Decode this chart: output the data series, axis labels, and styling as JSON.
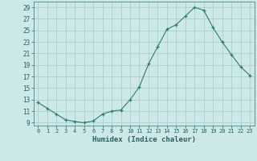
{
  "x": [
    0,
    1,
    2,
    3,
    4,
    5,
    6,
    7,
    8,
    9,
    10,
    11,
    12,
    13,
    14,
    15,
    16,
    17,
    18,
    19,
    20,
    21,
    22,
    23
  ],
  "y": [
    12.5,
    11.5,
    10.5,
    9.5,
    9.2,
    9.0,
    9.3,
    10.5,
    11.0,
    11.2,
    13.0,
    15.2,
    19.2,
    22.2,
    25.2,
    26.0,
    27.5,
    29.0,
    28.5,
    25.5,
    23.0,
    20.8,
    18.7,
    17.2
  ],
  "line_color": "#2e7d6e",
  "marker": "+",
  "bg_color": "#cce8e8",
  "grid_color": "#aacfcf",
  "xlabel": "Humidex (Indice chaleur)",
  "xlim": [
    -0.5,
    23.5
  ],
  "ylim": [
    8.5,
    30.0
  ],
  "yticks": [
    9,
    11,
    13,
    15,
    17,
    19,
    21,
    23,
    25,
    27,
    29
  ],
  "xtick_labels": [
    "0",
    "1",
    "2",
    "3",
    "4",
    "5",
    "6",
    "7",
    "8",
    "9",
    "10",
    "11",
    "12",
    "13",
    "14",
    "15",
    "16",
    "17",
    "18",
    "19",
    "20",
    "21",
    "22",
    "23"
  ]
}
